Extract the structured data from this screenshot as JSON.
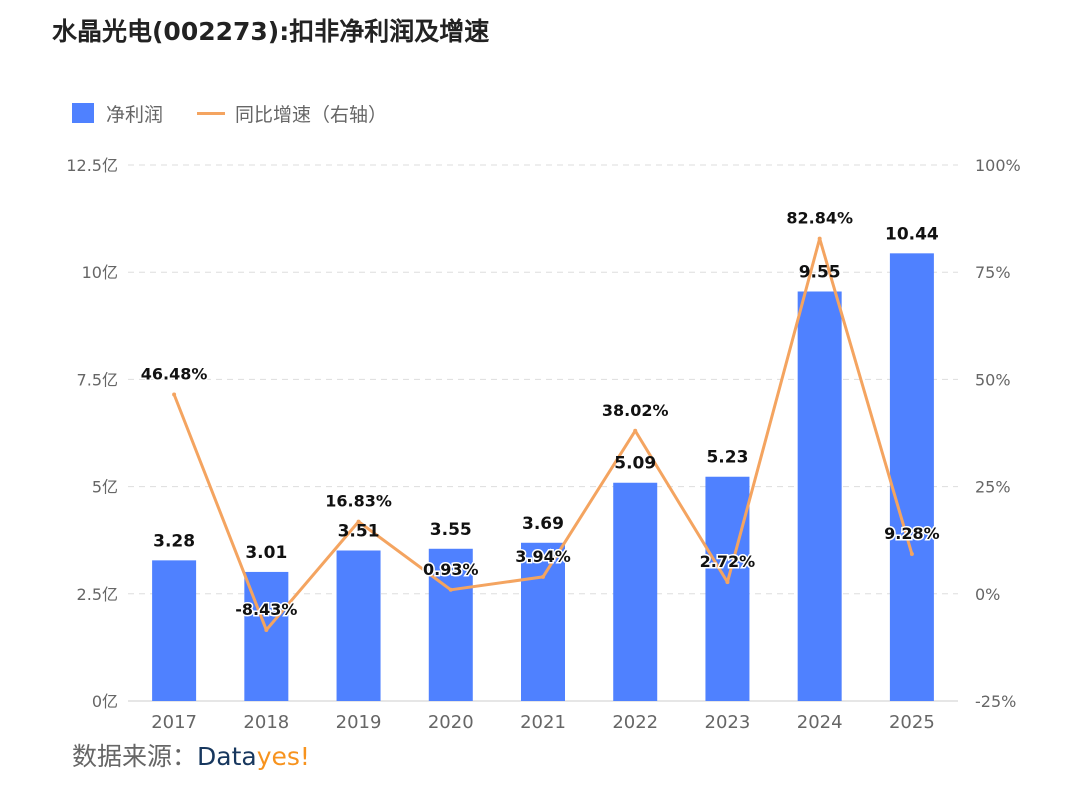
{
  "title": "水晶光电(002273):扣非净利润及增速",
  "legend": {
    "bar_label": "净利润",
    "line_label": "同比增速（右轴）"
  },
  "source": {
    "prefix": "数据来源：",
    "brand_part1": "Data",
    "brand_part2": "yes!"
  },
  "colors": {
    "bar": "#4f81ff",
    "line": "#f4a460",
    "grid": "#dddddd"
  },
  "chart_data": {
    "type": "bar+line",
    "title": "水晶光电(002273):扣非净利润及增速",
    "categories": [
      "2017",
      "2018",
      "2019",
      "2020",
      "2021",
      "2022",
      "2023",
      "2024",
      "2025"
    ],
    "series": [
      {
        "name": "净利润",
        "type": "bar",
        "axis": "left",
        "unit": "亿",
        "values": [
          3.28,
          3.01,
          3.51,
          3.55,
          3.69,
          5.09,
          5.23,
          9.55,
          10.44
        ],
        "labels": [
          "3.28",
          "3.01",
          "3.51",
          "3.55",
          "3.69",
          "5.09",
          "5.23",
          "9.55",
          "10.44"
        ]
      },
      {
        "name": "同比增速（右轴）",
        "type": "line",
        "axis": "right",
        "unit": "%",
        "values": [
          46.48,
          -8.43,
          16.83,
          0.93,
          3.94,
          38.02,
          2.72,
          82.84,
          9.28
        ],
        "labels": [
          "46.48%",
          "-8.43%",
          "16.83%",
          "0.93%",
          "3.94%",
          "38.02%",
          "2.72%",
          "82.84%",
          "9.28%"
        ]
      }
    ],
    "left_axis": {
      "ylim": [
        0,
        12.5
      ],
      "ticks": [
        0,
        2.5,
        5,
        7.5,
        10,
        12.5
      ],
      "tick_labels": [
        "0亿",
        "2.5亿",
        "5亿",
        "7.5亿",
        "10亿",
        "12.5亿"
      ]
    },
    "right_axis": {
      "ylim": [
        -25,
        100
      ],
      "ticks": [
        -25,
        0,
        25,
        50,
        75,
        100
      ],
      "tick_labels": [
        "-25%",
        "0%",
        "25%",
        "50%",
        "75%",
        "100%"
      ]
    },
    "grid": true,
    "legend_position": "top-left"
  }
}
